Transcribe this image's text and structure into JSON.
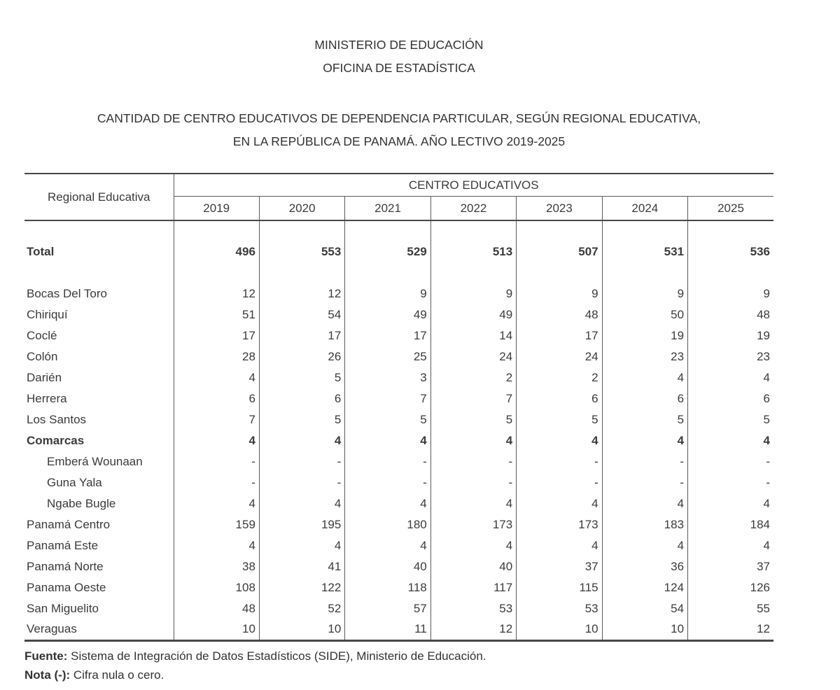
{
  "header": {
    "line1": "MINISTERIO DE EDUCACIÓN",
    "line2": "OFICINA DE ESTADÍSTICA",
    "title_line1": "CANTIDAD DE CENTRO EDUCATIVOS DE DEPENDENCIA PARTICULAR, SEGÚN REGIONAL EDUCATIVA,",
    "title_line2": "EN LA REPÚBLICA DE PANAMÁ. AÑO LECTIVO 2019-2025"
  },
  "table": {
    "row_header": "Regional Educativa",
    "group_header": "CENTRO EDUCATIVOS",
    "years": [
      "2019",
      "2020",
      "2021",
      "2022",
      "2023",
      "2024",
      "2025"
    ],
    "total": {
      "label": "Total",
      "values": [
        "496",
        "553",
        "529",
        "513",
        "507",
        "531",
        "536"
      ]
    },
    "rows": [
      {
        "label": "Bocas Del Toro",
        "bold": false,
        "indent": false,
        "values": [
          "12",
          "12",
          "9",
          "9",
          "9",
          "9",
          "9"
        ]
      },
      {
        "label": "Chiriquí",
        "bold": false,
        "indent": false,
        "values": [
          "51",
          "54",
          "49",
          "49",
          "48",
          "50",
          "48"
        ]
      },
      {
        "label": "Coclé",
        "bold": false,
        "indent": false,
        "values": [
          "17",
          "17",
          "17",
          "14",
          "17",
          "19",
          "19"
        ]
      },
      {
        "label": "Colón",
        "bold": false,
        "indent": false,
        "values": [
          "28",
          "26",
          "25",
          "24",
          "24",
          "23",
          "23"
        ]
      },
      {
        "label": "Darién",
        "bold": false,
        "indent": false,
        "values": [
          "4",
          "5",
          "3",
          "2",
          "2",
          "4",
          "4"
        ]
      },
      {
        "label": "Herrera",
        "bold": false,
        "indent": false,
        "values": [
          "6",
          "6",
          "7",
          "7",
          "6",
          "6",
          "6"
        ]
      },
      {
        "label": "Los Santos",
        "bold": false,
        "indent": false,
        "values": [
          "7",
          "5",
          "5",
          "5",
          "5",
          "5",
          "5"
        ]
      },
      {
        "label": "Comarcas",
        "bold": true,
        "indent": false,
        "values": [
          "4",
          "4",
          "4",
          "4",
          "4",
          "4",
          "4"
        ]
      },
      {
        "label": "Emberá Wounaan",
        "bold": false,
        "indent": true,
        "values": [
          "-",
          "-",
          "-",
          "-",
          "-",
          "-",
          "-"
        ]
      },
      {
        "label": "Guna Yala",
        "bold": false,
        "indent": true,
        "values": [
          "-",
          "-",
          "-",
          "-",
          "-",
          "-",
          "-"
        ]
      },
      {
        "label": "Ngabe Bugle",
        "bold": false,
        "indent": true,
        "values": [
          "4",
          "4",
          "4",
          "4",
          "4",
          "4",
          "4"
        ]
      },
      {
        "label": "Panamá Centro",
        "bold": false,
        "indent": false,
        "values": [
          "159",
          "195",
          "180",
          "173",
          "173",
          "183",
          "184"
        ]
      },
      {
        "label": "Panamá Este",
        "bold": false,
        "indent": false,
        "values": [
          "4",
          "4",
          "4",
          "4",
          "4",
          "4",
          "4"
        ]
      },
      {
        "label": "Panamá Norte",
        "bold": false,
        "indent": false,
        "values": [
          "38",
          "41",
          "40",
          "40",
          "37",
          "36",
          "37"
        ]
      },
      {
        "label": "Panama Oeste",
        "bold": false,
        "indent": false,
        "values": [
          "108",
          "122",
          "118",
          "117",
          "115",
          "124",
          "126"
        ]
      },
      {
        "label": "San Miguelito",
        "bold": false,
        "indent": false,
        "values": [
          "48",
          "52",
          "57",
          "53",
          "53",
          "54",
          "55"
        ]
      },
      {
        "label": "Veraguas",
        "bold": false,
        "indent": false,
        "values": [
          "10",
          "10",
          "11",
          "12",
          "10",
          "10",
          "12"
        ]
      }
    ]
  },
  "footer": {
    "fuente_label": "Fuente:",
    "fuente_text": " Sistema de Integración de Datos Estadísticos (SIDE), Ministerio de Educación.",
    "nota_label": "Nota (-):",
    "nota_text": " Cifra nula o cero."
  },
  "colors": {
    "text": "#3b3b3b",
    "border_heavy": "#474747",
    "border_thin": "#5a5a5a",
    "background": "#ffffff"
  }
}
